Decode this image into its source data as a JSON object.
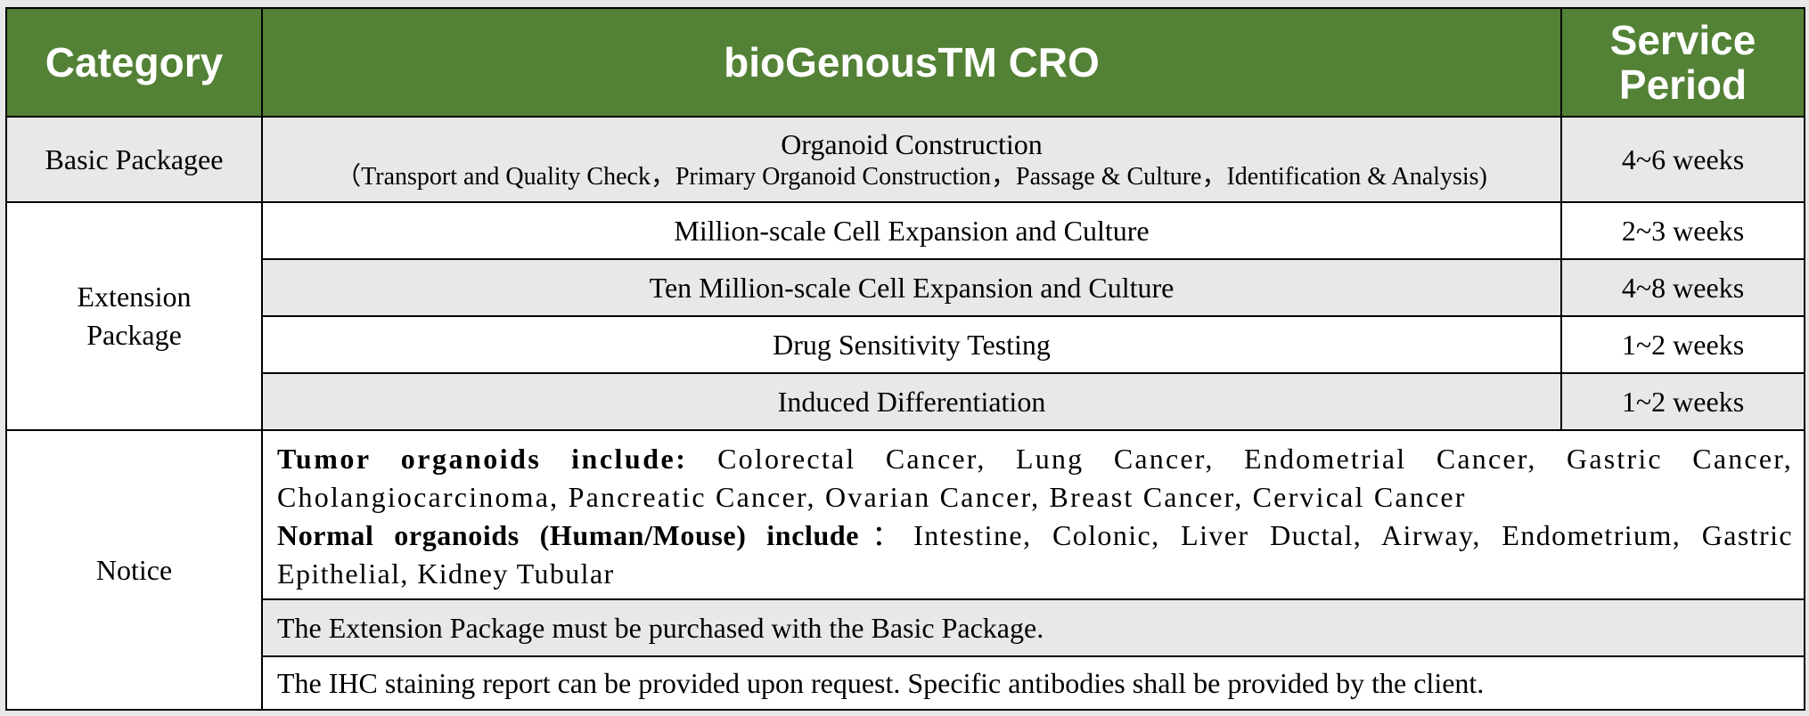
{
  "header": {
    "category": "Category",
    "service": "bioGenousTM CRO",
    "period_line1": "Service",
    "period_line2": "Period"
  },
  "basic": {
    "category": "Basic Packagee",
    "title": "Organoid Construction",
    "details": "（Transport and Quality Check，Primary Organoid Construction，Passage & Culture，Identification & Analysis)",
    "period": "4~6 weeks"
  },
  "extension": {
    "category_line1": "Extension",
    "category_line2": "Package",
    "rows": [
      {
        "service": "Million-scale Cell Expansion and Culture",
        "period": "2~3 weeks"
      },
      {
        "service": "Ten Million-scale Cell Expansion and Culture",
        "period": "4~8 weeks"
      },
      {
        "service": "Drug Sensitivity Testing",
        "period": "1~2 weeks"
      },
      {
        "service": "Induced Differentiation",
        "period": "1~2 weeks"
      }
    ]
  },
  "notice": {
    "category": "Notice",
    "tumor_label": "Tumor organoids include: ",
    "tumor_list": "Colorectal Cancer, Lung Cancer, Endometrial Cancer, Gastric Cancer, Cholangiocarcinoma, Pancreatic Cancer, Ovarian Cancer, Breast Cancer, Cervical Cancer",
    "normal_label": "Normal organoids (Human/Mouse) include",
    "normal_colon": "：",
    "normal_list": "Intestine, Colonic, Liver Ductal, Airway, Endometrium, Gastric Epithelial, Kidney Tubular",
    "line2": "The Extension Package must be purchased with the Basic Package.",
    "line3": "The IHC staining report can be provided upon request. Specific antibodies shall be provided by the client."
  }
}
